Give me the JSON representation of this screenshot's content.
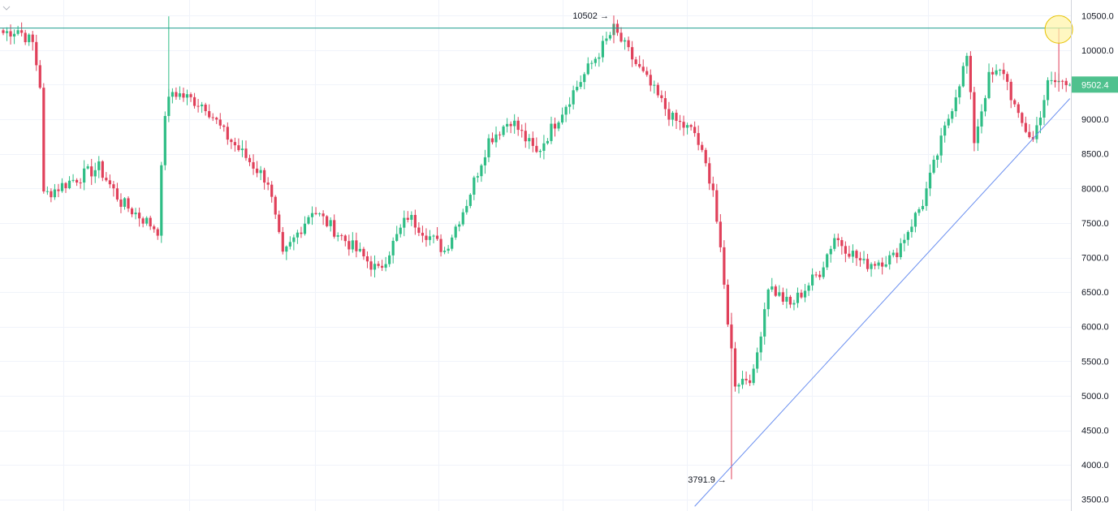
{
  "colors": {
    "up": "#26a69a",
    "up_bright": "#2ebd85",
    "down": "#e0405a",
    "grid": "#f0f3fa",
    "axis_border": "#d1d4dc",
    "resistance_line": "#1e9e8f",
    "trend_line": "#6a8ff0",
    "highlight_fill": "#fff3a6",
    "highlight_stroke": "#e6c200",
    "last_price_bg": "#4fc18e"
  },
  "chart_data": {
    "type": "candlestick",
    "ylim": [
      3450,
      10550
    ],
    "y_ticks": [
      "10500.0",
      "10000.0",
      "9500.0",
      "9000.0",
      "8500.0",
      "8000.0",
      "7500.0",
      "7000.0",
      "6500.0",
      "6000.0",
      "5500.0",
      "5000.0",
      "4500.0",
      "4000.0",
      "3500.0"
    ],
    "y_tick_values": [
      10500,
      10000,
      9500,
      9000,
      8500,
      8000,
      7500,
      7000,
      6500,
      6000,
      5500,
      5000,
      4500,
      4000,
      3500
    ],
    "last_price": "9502.4",
    "last_price_value": 9502.4,
    "annotations": [
      {
        "text": "10502",
        "value": 10502,
        "bar_index": 166
      },
      {
        "text": "3791.9",
        "value": 3791.9,
        "bar_index": 198
      }
    ],
    "horizontal_line": {
      "value": 10320
    },
    "trendline": {
      "start": {
        "bar_index": 188,
        "value": 3400
      },
      "end": {
        "bar_index": 290,
        "value": 9300
      }
    },
    "highlight_circle": {
      "bar_index": 287,
      "value": 10300
    },
    "candles_count": 290,
    "key_points": [
      {
        "i": 0,
        "v": 10250
      },
      {
        "i": 4,
        "v": 10300
      },
      {
        "i": 8,
        "v": 10100
      },
      {
        "i": 10,
        "v": 9500
      },
      {
        "i": 11,
        "v": 7900
      },
      {
        "i": 18,
        "v": 8100
      },
      {
        "i": 26,
        "v": 8300
      },
      {
        "i": 32,
        "v": 7800
      },
      {
        "i": 42,
        "v": 7400
      },
      {
        "i": 44,
        "v": 9100
      },
      {
        "i": 46,
        "v": 9400
      },
      {
        "i": 55,
        "v": 9200
      },
      {
        "i": 60,
        "v": 8800
      },
      {
        "i": 72,
        "v": 8100
      },
      {
        "i": 76,
        "v": 7000
      },
      {
        "i": 84,
        "v": 7700
      },
      {
        "i": 92,
        "v": 7300
      },
      {
        "i": 102,
        "v": 6800
      },
      {
        "i": 110,
        "v": 7600
      },
      {
        "i": 120,
        "v": 7100
      },
      {
        "i": 126,
        "v": 7800
      },
      {
        "i": 132,
        "v": 8700
      },
      {
        "i": 138,
        "v": 9000
      },
      {
        "i": 145,
        "v": 8500
      },
      {
        "i": 155,
        "v": 9400
      },
      {
        "i": 166,
        "v": 10300
      },
      {
        "i": 172,
        "v": 9800
      },
      {
        "i": 182,
        "v": 9000
      },
      {
        "i": 188,
        "v": 8800
      },
      {
        "i": 193,
        "v": 8000
      },
      {
        "i": 197,
        "v": 6100
      },
      {
        "i": 199,
        "v": 5200
      },
      {
        "i": 204,
        "v": 5300
      },
      {
        "i": 208,
        "v": 6600
      },
      {
        "i": 214,
        "v": 6300
      },
      {
        "i": 222,
        "v": 6800
      },
      {
        "i": 226,
        "v": 7300
      },
      {
        "i": 234,
        "v": 6900
      },
      {
        "i": 242,
        "v": 7000
      },
      {
        "i": 250,
        "v": 7800
      },
      {
        "i": 254,
        "v": 8500
      },
      {
        "i": 258,
        "v": 9200
      },
      {
        "i": 262,
        "v": 9900
      },
      {
        "i": 264,
        "v": 8700
      },
      {
        "i": 268,
        "v": 9600
      },
      {
        "i": 272,
        "v": 9700
      },
      {
        "i": 276,
        "v": 9000
      },
      {
        "i": 280,
        "v": 8700
      },
      {
        "i": 284,
        "v": 9500
      },
      {
        "i": 287,
        "v": 9550
      },
      {
        "i": 290,
        "v": 9500
      }
    ]
  }
}
